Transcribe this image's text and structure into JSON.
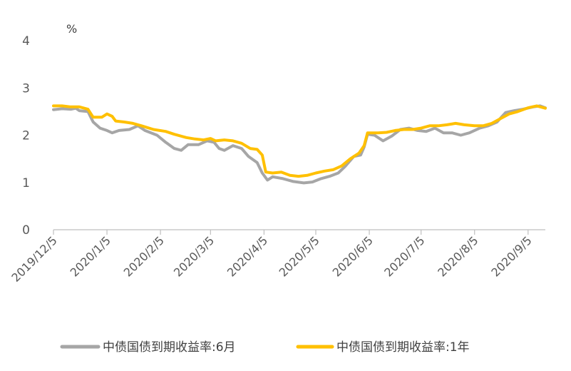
{
  "chart_data": {
    "type": "line",
    "y_unit": "%",
    "ylim": [
      0,
      4
    ],
    "y_ticks": [
      "0",
      "1",
      "2",
      "3",
      "4"
    ],
    "x_range": [
      "2019-12-05",
      "2020-09-15"
    ],
    "x_tick_dates": [
      "2019-12-05",
      "2020-01-05",
      "2020-02-05",
      "2020-03-05",
      "2020-04-05",
      "2020-05-05",
      "2020-06-05",
      "2020-07-05",
      "2020-08-05",
      "2020-09-05"
    ],
    "x_tick_labels": [
      "2019/12/5",
      "2020/1/5",
      "2020/2/5",
      "2020/3/5",
      "2020/4/5",
      "2020/5/5",
      "2020/6/5",
      "2020/7/5",
      "2020/8/5",
      "2020/9/5"
    ],
    "series": [
      {
        "name": "中债国债到期收益率:6月",
        "color": "#a6a6a6",
        "points": [
          [
            "2019-12-05",
            2.54
          ],
          [
            "2019-12-10",
            2.56
          ],
          [
            "2019-12-15",
            2.55
          ],
          [
            "2019-12-18",
            2.57
          ],
          [
            "2019-12-20",
            2.52
          ],
          [
            "2019-12-25",
            2.5
          ],
          [
            "2019-12-28",
            2.28
          ],
          [
            "2020-01-01",
            2.15
          ],
          [
            "2020-01-05",
            2.1
          ],
          [
            "2020-01-08",
            2.05
          ],
          [
            "2020-01-12",
            2.1
          ],
          [
            "2020-01-18",
            2.12
          ],
          [
            "2020-01-23",
            2.2
          ],
          [
            "2020-01-27",
            2.1
          ],
          [
            "2020-02-03",
            2.0
          ],
          [
            "2020-02-08",
            1.85
          ],
          [
            "2020-02-13",
            1.72
          ],
          [
            "2020-02-17",
            1.68
          ],
          [
            "2020-02-21",
            1.8
          ],
          [
            "2020-02-27",
            1.8
          ],
          [
            "2020-03-03",
            1.88
          ],
          [
            "2020-03-07",
            1.85
          ],
          [
            "2020-03-10",
            1.72
          ],
          [
            "2020-03-13",
            1.68
          ],
          [
            "2020-03-18",
            1.78
          ],
          [
            "2020-03-23",
            1.72
          ],
          [
            "2020-03-27",
            1.55
          ],
          [
            "2020-04-01",
            1.42
          ],
          [
            "2020-04-04",
            1.2
          ],
          [
            "2020-04-07",
            1.05
          ],
          [
            "2020-04-10",
            1.12
          ],
          [
            "2020-04-16",
            1.08
          ],
          [
            "2020-04-22",
            1.02
          ],
          [
            "2020-04-28",
            0.99
          ],
          [
            "2020-05-03",
            1.01
          ],
          [
            "2020-05-08",
            1.08
          ],
          [
            "2020-05-13",
            1.13
          ],
          [
            "2020-05-18",
            1.2
          ],
          [
            "2020-05-22",
            1.34
          ],
          [
            "2020-05-27",
            1.55
          ],
          [
            "2020-05-31",
            1.58
          ],
          [
            "2020-06-02",
            1.75
          ],
          [
            "2020-06-04",
            2.02
          ],
          [
            "2020-06-08",
            2.0
          ],
          [
            "2020-06-13",
            1.88
          ],
          [
            "2020-06-18",
            1.98
          ],
          [
            "2020-06-23",
            2.12
          ],
          [
            "2020-06-28",
            2.15
          ],
          [
            "2020-07-03",
            2.1
          ],
          [
            "2020-07-08",
            2.08
          ],
          [
            "2020-07-13",
            2.15
          ],
          [
            "2020-07-18",
            2.05
          ],
          [
            "2020-07-23",
            2.05
          ],
          [
            "2020-07-28",
            2.0
          ],
          [
            "2020-08-02",
            2.05
          ],
          [
            "2020-08-08",
            2.15
          ],
          [
            "2020-08-13",
            2.2
          ],
          [
            "2020-08-18",
            2.28
          ],
          [
            "2020-08-23",
            2.48
          ],
          [
            "2020-08-28",
            2.52
          ],
          [
            "2020-09-02",
            2.55
          ],
          [
            "2020-09-08",
            2.6
          ],
          [
            "2020-09-12",
            2.62
          ],
          [
            "2020-09-15",
            2.58
          ]
        ]
      },
      {
        "name": "中债国债到期收益率:1年",
        "color": "#ffc000",
        "points": [
          [
            "2019-12-05",
            2.62
          ],
          [
            "2019-12-10",
            2.62
          ],
          [
            "2019-12-15",
            2.6
          ],
          [
            "2019-12-20",
            2.6
          ],
          [
            "2019-12-25",
            2.55
          ],
          [
            "2019-12-28",
            2.38
          ],
          [
            "2020-01-02",
            2.38
          ],
          [
            "2020-01-05",
            2.45
          ],
          [
            "2020-01-08",
            2.4
          ],
          [
            "2020-01-10",
            2.3
          ],
          [
            "2020-01-15",
            2.28
          ],
          [
            "2020-01-20",
            2.25
          ],
          [
            "2020-01-25",
            2.2
          ],
          [
            "2020-02-01",
            2.12
          ],
          [
            "2020-02-08",
            2.08
          ],
          [
            "2020-02-13",
            2.02
          ],
          [
            "2020-02-20",
            1.95
          ],
          [
            "2020-02-25",
            1.92
          ],
          [
            "2020-03-01",
            1.9
          ],
          [
            "2020-03-05",
            1.93
          ],
          [
            "2020-03-08",
            1.88
          ],
          [
            "2020-03-13",
            1.9
          ],
          [
            "2020-03-18",
            1.88
          ],
          [
            "2020-03-23",
            1.83
          ],
          [
            "2020-03-28",
            1.72
          ],
          [
            "2020-04-01",
            1.7
          ],
          [
            "2020-04-04",
            1.58
          ],
          [
            "2020-04-06",
            1.22
          ],
          [
            "2020-04-10",
            1.2
          ],
          [
            "2020-04-15",
            1.22
          ],
          [
            "2020-04-20",
            1.15
          ],
          [
            "2020-04-25",
            1.13
          ],
          [
            "2020-04-30",
            1.15
          ],
          [
            "2020-05-05",
            1.2
          ],
          [
            "2020-05-10",
            1.24
          ],
          [
            "2020-05-15",
            1.27
          ],
          [
            "2020-05-20",
            1.35
          ],
          [
            "2020-05-25",
            1.5
          ],
          [
            "2020-05-30",
            1.62
          ],
          [
            "2020-06-02",
            1.78
          ],
          [
            "2020-06-04",
            2.05
          ],
          [
            "2020-06-10",
            2.05
          ],
          [
            "2020-06-15",
            2.06
          ],
          [
            "2020-06-20",
            2.1
          ],
          [
            "2020-06-25",
            2.12
          ],
          [
            "2020-06-30",
            2.12
          ],
          [
            "2020-07-05",
            2.15
          ],
          [
            "2020-07-10",
            2.2
          ],
          [
            "2020-07-15",
            2.2
          ],
          [
            "2020-07-20",
            2.22
          ],
          [
            "2020-07-25",
            2.25
          ],
          [
            "2020-07-30",
            2.22
          ],
          [
            "2020-08-05",
            2.2
          ],
          [
            "2020-08-10",
            2.2
          ],
          [
            "2020-08-15",
            2.25
          ],
          [
            "2020-08-20",
            2.35
          ],
          [
            "2020-08-25",
            2.45
          ],
          [
            "2020-08-30",
            2.5
          ],
          [
            "2020-09-05",
            2.58
          ],
          [
            "2020-09-10",
            2.62
          ],
          [
            "2020-09-15",
            2.57
          ]
        ]
      }
    ],
    "grid": false,
    "legend_position": "bottom"
  }
}
